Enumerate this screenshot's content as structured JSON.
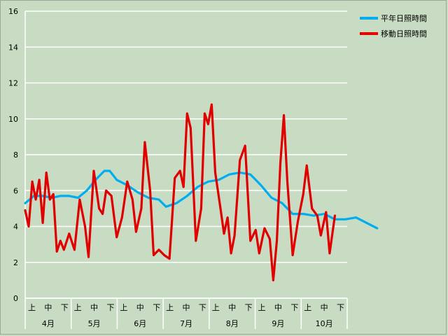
{
  "chart_data": {
    "type": "line",
    "title": "",
    "xlabel": "",
    "ylabel": "",
    "ylim": [
      0,
      16
    ],
    "yticks": [
      0,
      2,
      4,
      6,
      8,
      10,
      12,
      14,
      16
    ],
    "grid": true,
    "legend_position": "top-right",
    "months": [
      "4月",
      "5月",
      "6月",
      "7月",
      "8月",
      "9月",
      "10月"
    ],
    "decades": [
      "上",
      "中",
      "下"
    ],
    "x_unit": "day index from Apr 1",
    "series": [
      {
        "name": "平年日照時間",
        "color": "#00aeef",
        "points": [
          [
            0,
            5.3
          ],
          [
            5,
            5.7
          ],
          [
            10,
            5.7
          ],
          [
            15,
            5.6
          ],
          [
            20,
            5.7
          ],
          [
            25,
            5.7
          ],
          [
            30,
            5.6
          ],
          [
            35,
            6.0
          ],
          [
            40,
            6.6
          ],
          [
            45,
            7.1
          ],
          [
            48,
            7.1
          ],
          [
            52,
            6.6
          ],
          [
            58,
            6.3
          ],
          [
            64,
            5.9
          ],
          [
            70,
            5.6
          ],
          [
            76,
            5.5
          ],
          [
            80,
            5.1
          ],
          [
            86,
            5.3
          ],
          [
            92,
            5.7
          ],
          [
            98,
            6.2
          ],
          [
            104,
            6.5
          ],
          [
            110,
            6.6
          ],
          [
            116,
            6.9
          ],
          [
            122,
            7.0
          ],
          [
            128,
            6.9
          ],
          [
            134,
            6.3
          ],
          [
            140,
            5.6
          ],
          [
            146,
            5.3
          ],
          [
            152,
            4.7
          ],
          [
            158,
            4.7
          ],
          [
            164,
            4.6
          ],
          [
            170,
            4.7
          ],
          [
            176,
            4.4
          ],
          [
            182,
            4.4
          ],
          [
            188,
            4.5
          ],
          [
            194,
            4.2
          ],
          [
            200,
            3.9
          ]
        ]
      },
      {
        "name": "移動日照時間",
        "color": "#e00000",
        "points": [
          [
            0,
            4.9
          ],
          [
            2,
            4.0
          ],
          [
            4,
            6.5
          ],
          [
            6,
            5.5
          ],
          [
            8,
            6.6
          ],
          [
            10,
            4.2
          ],
          [
            12,
            7.0
          ],
          [
            14,
            5.5
          ],
          [
            16,
            5.8
          ],
          [
            18,
            2.6
          ],
          [
            20,
            3.2
          ],
          [
            22,
            2.7
          ],
          [
            25,
            3.6
          ],
          [
            28,
            2.7
          ],
          [
            31,
            5.5
          ],
          [
            34,
            4.0
          ],
          [
            36,
            2.3
          ],
          [
            39,
            7.1
          ],
          [
            42,
            5.0
          ],
          [
            44,
            4.7
          ],
          [
            46,
            6.0
          ],
          [
            49,
            5.7
          ],
          [
            52,
            3.4
          ],
          [
            55,
            4.5
          ],
          [
            58,
            6.5
          ],
          [
            61,
            5.5
          ],
          [
            63,
            3.7
          ],
          [
            66,
            5.0
          ],
          [
            68,
            8.7
          ],
          [
            71,
            6.0
          ],
          [
            73,
            2.4
          ],
          [
            76,
            2.7
          ],
          [
            79,
            2.4
          ],
          [
            82,
            2.2
          ],
          [
            85,
            6.7
          ],
          [
            88,
            7.1
          ],
          [
            90,
            6.2
          ],
          [
            92,
            10.3
          ],
          [
            94,
            9.5
          ],
          [
            97,
            3.2
          ],
          [
            100,
            5.0
          ],
          [
            102,
            10.3
          ],
          [
            104,
            9.7
          ],
          [
            106,
            10.8
          ],
          [
            108,
            7.0
          ],
          [
            111,
            5.0
          ],
          [
            113,
            3.6
          ],
          [
            115,
            4.5
          ],
          [
            117,
            2.5
          ],
          [
            119,
            3.5
          ],
          [
            122,
            7.7
          ],
          [
            125,
            8.5
          ],
          [
            128,
            3.2
          ],
          [
            131,
            3.8
          ],
          [
            133,
            2.5
          ],
          [
            136,
            3.9
          ],
          [
            139,
            3.3
          ],
          [
            141,
            1.0
          ],
          [
            143,
            3.2
          ],
          [
            145,
            7.5
          ],
          [
            147,
            10.2
          ],
          [
            149,
            6.5
          ],
          [
            152,
            2.4
          ],
          [
            155,
            4.3
          ],
          [
            158,
            5.8
          ],
          [
            160,
            7.4
          ],
          [
            163,
            5.0
          ],
          [
            166,
            4.6
          ],
          [
            168,
            3.5
          ],
          [
            171,
            4.8
          ],
          [
            173,
            2.5
          ],
          [
            176,
            4.6
          ]
        ]
      }
    ]
  }
}
